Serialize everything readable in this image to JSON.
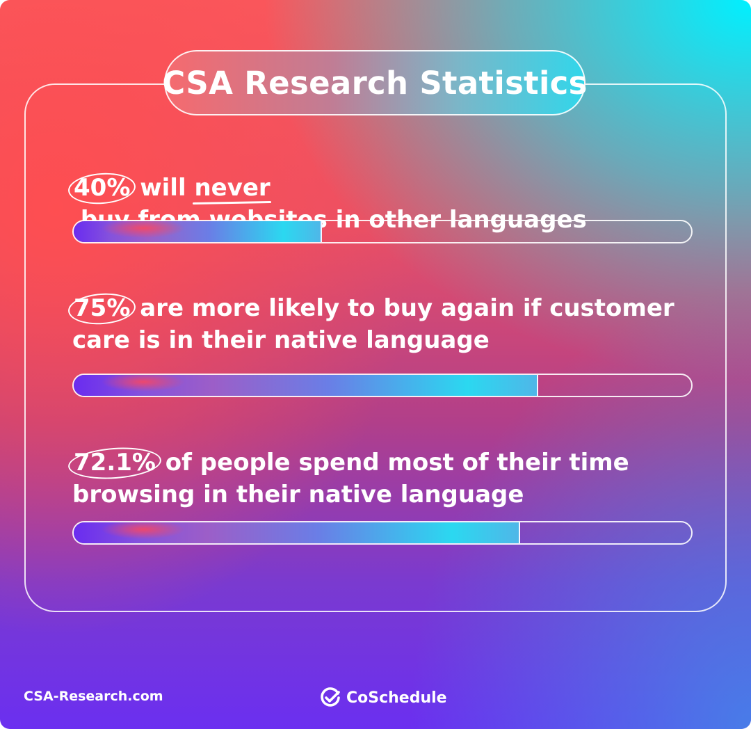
{
  "title": "CSA Research Statistics",
  "stats": [
    {
      "percent": "40%",
      "before_emphasis": " will ",
      "emphasis": "never",
      "after_emphasis": " buy from websites in other languages",
      "fill_fraction": 0.4
    },
    {
      "percent": "75%",
      "text": " are more likely to buy again if customer care is in their native language",
      "fill_fraction": 0.75
    },
    {
      "percent": "72.1%",
      "text": " of people spend most of their time browsing in their native language",
      "fill_fraction": 0.721
    }
  ],
  "footer": {
    "source": "CSA-Research.com",
    "brand": "CoSchedule",
    "brand_icon": "check-circle-icon"
  },
  "colors": {
    "gradient_top_right": "#00f0ff",
    "gradient_left": "#ff4e50",
    "gradient_bottom_left": "#6b2ff0"
  }
}
